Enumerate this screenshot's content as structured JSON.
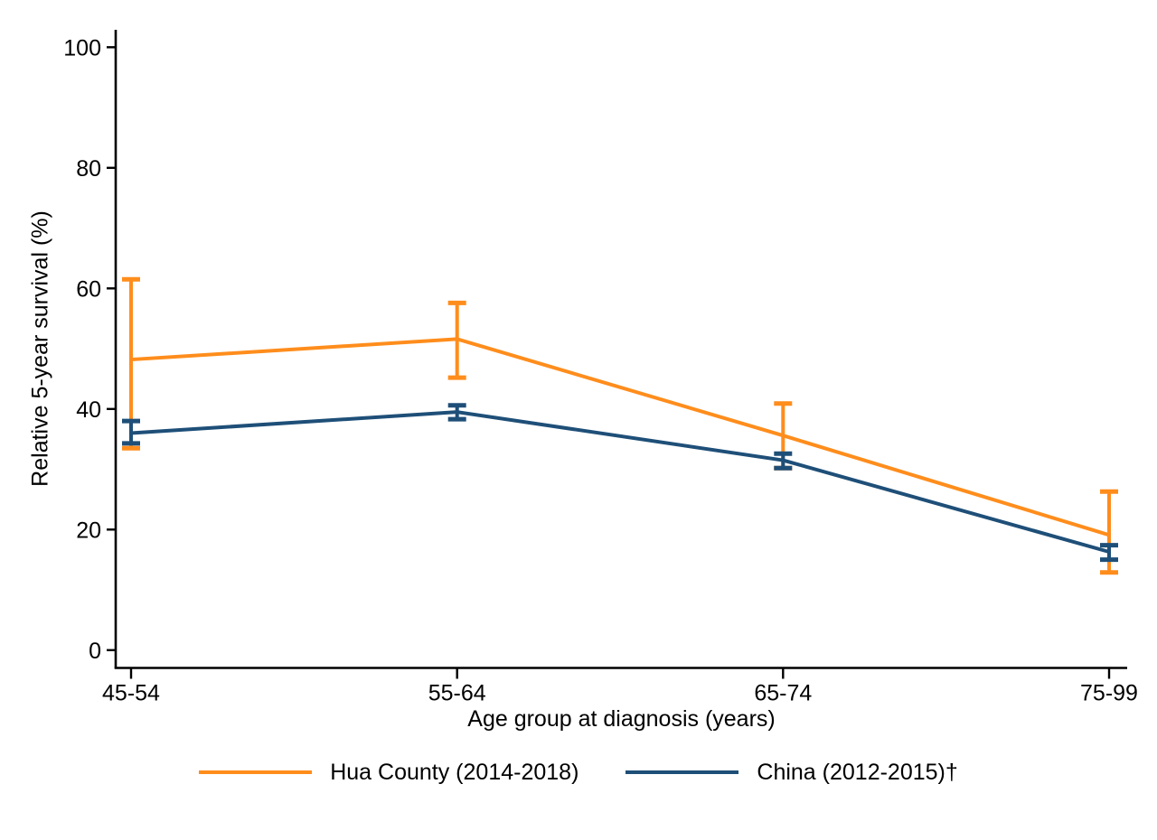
{
  "chart_data": {
    "type": "line",
    "title": "",
    "xlabel": "Age group at diagnosis (years)",
    "ylabel": "Relative 5-year survival (%)",
    "categories": [
      "45-54",
      "55-64",
      "65-74",
      "75-99"
    ],
    "ylim": [
      0,
      100
    ],
    "yticks": [
      0,
      20,
      40,
      60,
      80,
      100
    ],
    "grid": false,
    "legend_position": "bottom",
    "background": "#ffffff",
    "axis_color": "#000000",
    "error_bars": true,
    "series": [
      {
        "name": "Hua County (2014-2018)",
        "color": "#ff8d1c",
        "values": [
          48.2,
          51.6,
          35.6,
          19.1
        ],
        "ci_low": [
          33.5,
          45.2,
          30.2,
          12.9
        ],
        "ci_high": [
          61.5,
          57.6,
          40.9,
          26.3
        ]
      },
      {
        "name": "China (2012-2015)†",
        "color": "#1e4f78",
        "values": [
          36.0,
          39.5,
          31.5,
          16.3
        ],
        "ci_low": [
          34.3,
          38.3,
          30.2,
          15.0
        ],
        "ci_high": [
          38.0,
          40.6,
          32.6,
          17.4
        ]
      }
    ]
  }
}
